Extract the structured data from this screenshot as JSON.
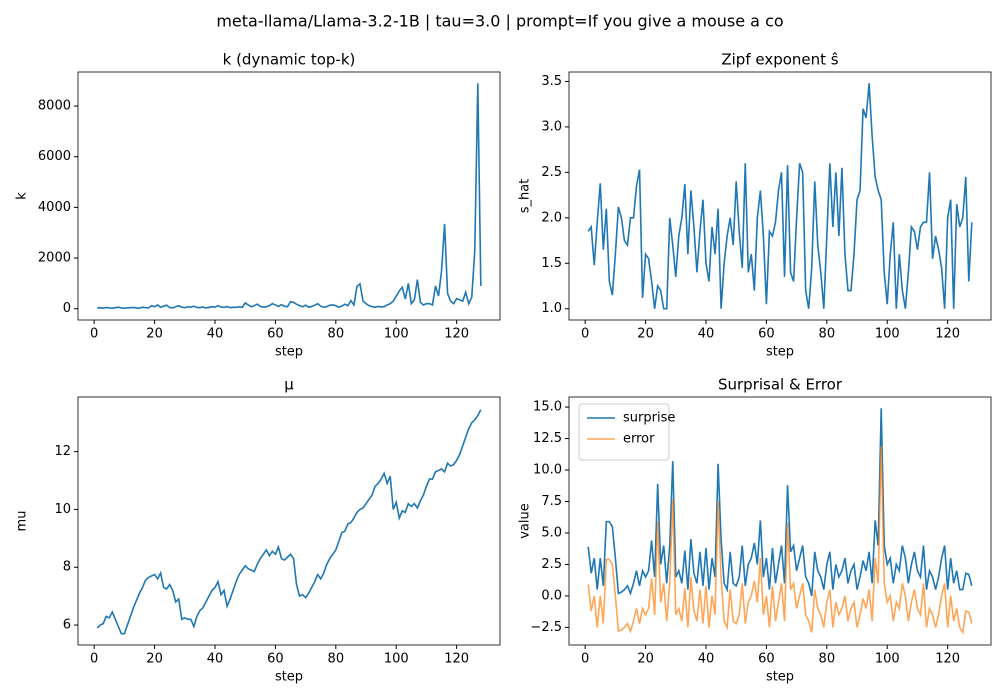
{
  "title": "meta-llama/Llama-3.2-1B | tau=3.0 | prompt=If you give a mouse a co",
  "chart_data": [
    {
      "type": "line",
      "title": "k (dynamic top-k)",
      "xlabel": "step",
      "ylabel": "k",
      "color": "#1f77b4",
      "x": [
        1,
        2,
        3,
        4,
        5,
        6,
        7,
        8,
        9,
        10,
        11,
        12,
        13,
        14,
        15,
        16,
        17,
        18,
        19,
        20,
        21,
        22,
        23,
        24,
        25,
        26,
        27,
        28,
        29,
        30,
        31,
        32,
        33,
        34,
        35,
        36,
        37,
        38,
        39,
        40,
        41,
        42,
        43,
        44,
        45,
        46,
        47,
        48,
        49,
        50,
        51,
        52,
        53,
        54,
        55,
        56,
        57,
        58,
        59,
        60,
        61,
        62,
        63,
        64,
        65,
        66,
        67,
        68,
        69,
        70,
        71,
        72,
        73,
        74,
        75,
        76,
        77,
        78,
        79,
        80,
        81,
        82,
        83,
        84,
        85,
        86,
        87,
        88,
        89,
        90,
        91,
        92,
        93,
        94,
        95,
        96,
        97,
        98,
        99,
        100,
        101,
        102,
        103,
        104,
        105,
        106,
        107,
        108,
        109,
        110,
        111,
        112,
        113,
        114,
        115,
        116,
        117,
        118,
        119,
        120,
        121,
        122,
        123,
        124,
        125,
        126,
        127,
        128
      ],
      "values": [
        30,
        40,
        20,
        50,
        30,
        20,
        40,
        60,
        30,
        20,
        30,
        40,
        50,
        30,
        20,
        60,
        40,
        30,
        120,
        80,
        150,
        60,
        100,
        140,
        50,
        30,
        80,
        120,
        60,
        40,
        80,
        60,
        100,
        50,
        40,
        70,
        30,
        50,
        80,
        60,
        120,
        70,
        50,
        90,
        40,
        60,
        50,
        80,
        50,
        230,
        150,
        80,
        120,
        180,
        90,
        60,
        80,
        120,
        200,
        150,
        90,
        160,
        100,
        80,
        280,
        250,
        180,
        120,
        80,
        140,
        60,
        90,
        140,
        200,
        100,
        60,
        80,
        140,
        150,
        120,
        60,
        100,
        180,
        120,
        320,
        150,
        880,
        980,
        300,
        200,
        120,
        80,
        60,
        90,
        70,
        80,
        150,
        200,
        300,
        500,
        700,
        850,
        380,
        1000,
        200,
        350,
        1150,
        250,
        150,
        200,
        200,
        150,
        900,
        500,
        1500,
        3350,
        600,
        300,
        200,
        400,
        350,
        300,
        650,
        200,
        450,
        2300,
        8900,
        900
      ],
      "xlim": [
        -5.35,
        134.35
      ],
      "xticks": [
        0,
        20,
        40,
        60,
        80,
        100,
        120
      ],
      "ylim": [
        -445,
        9345
      ],
      "yticks": [
        0,
        2000,
        4000,
        6000,
        8000
      ]
    },
    {
      "type": "line",
      "title": "Zipf exponent ŝ",
      "xlabel": "step",
      "ylabel": "s_hat",
      "color": "#1f77b4",
      "x": [
        1,
        2,
        3,
        4,
        5,
        6,
        7,
        8,
        9,
        10,
        11,
        12,
        13,
        14,
        15,
        16,
        17,
        18,
        19,
        20,
        21,
        22,
        23,
        24,
        25,
        26,
        27,
        28,
        29,
        30,
        31,
        32,
        33,
        34,
        35,
        36,
        37,
        38,
        39,
        40,
        41,
        42,
        43,
        44,
        45,
        46,
        47,
        48,
        49,
        50,
        51,
        52,
        53,
        54,
        55,
        56,
        57,
        58,
        59,
        60,
        61,
        62,
        63,
        64,
        65,
        66,
        67,
        68,
        69,
        70,
        71,
        72,
        73,
        74,
        75,
        76,
        77,
        78,
        79,
        80,
        81,
        82,
        83,
        84,
        85,
        86,
        87,
        88,
        89,
        90,
        91,
        92,
        93,
        94,
        95,
        96,
        97,
        98,
        99,
        100,
        101,
        102,
        103,
        104,
        105,
        106,
        107,
        108,
        109,
        110,
        111,
        112,
        113,
        114,
        115,
        116,
        117,
        118,
        119,
        120,
        121,
        122,
        123,
        124,
        125,
        126,
        127,
        128
      ],
      "values": [
        1.85,
        1.9,
        1.48,
        1.95,
        2.38,
        1.65,
        2.1,
        1.3,
        1.15,
        1.6,
        2.12,
        2.0,
        1.75,
        1.7,
        2.0,
        2.0,
        2.35,
        2.53,
        1.12,
        1.6,
        1.55,
        1.3,
        1.0,
        1.25,
        1.2,
        1.0,
        1.0,
        2.0,
        1.7,
        1.35,
        1.8,
        2.0,
        2.37,
        1.6,
        2.3,
        1.9,
        1.4,
        1.85,
        2.2,
        1.5,
        1.3,
        1.9,
        1.6,
        2.1,
        1.0,
        1.5,
        1.8,
        2.0,
        1.7,
        2.4,
        1.85,
        1.45,
        2.6,
        1.4,
        1.6,
        1.2,
        2.0,
        2.3,
        1.8,
        1.05,
        1.85,
        1.8,
        1.95,
        2.3,
        2.5,
        1.35,
        2.58,
        1.4,
        1.3,
        2.0,
        2.6,
        2.5,
        1.2,
        1.0,
        1.45,
        2.4,
        1.7,
        1.4,
        1.0,
        1.8,
        2.6,
        1.9,
        2.5,
        1.8,
        2.55,
        1.6,
        1.2,
        1.2,
        1.6,
        2.2,
        2.3,
        3.2,
        3.1,
        3.48,
        2.9,
        2.45,
        2.3,
        2.2,
        1.4,
        1.05,
        1.6,
        1.95,
        1.0,
        1.6,
        1.2,
        1.0,
        1.4,
        1.9,
        1.85,
        1.65,
        1.9,
        1.95,
        1.95,
        2.5,
        1.55,
        1.8,
        1.65,
        1.45,
        1.0,
        2.0,
        2.2,
        1.0,
        2.15,
        1.9,
        2.0,
        2.45,
        1.3,
        1.95
      ],
      "xlim": [
        -5.35,
        134.35
      ],
      "xticks": [
        0,
        20,
        40,
        60,
        80,
        100,
        120
      ],
      "ylim": [
        0.876,
        3.604
      ],
      "yticks": [
        {
          "value": 1,
          "label": "1.0"
        },
        {
          "value": 1.5,
          "label": "1.5"
        },
        {
          "value": 2,
          "label": "2.0"
        },
        {
          "value": 2.5,
          "label": "2.5"
        },
        {
          "value": 3,
          "label": "3.0"
        },
        {
          "value": 3.5,
          "label": "3.5"
        }
      ]
    },
    {
      "type": "line",
      "title": "μ",
      "xlabel": "step",
      "ylabel": "mu",
      "color": "#1f77b4",
      "x": [
        1,
        2,
        3,
        4,
        5,
        6,
        7,
        8,
        9,
        10,
        11,
        12,
        13,
        14,
        15,
        16,
        17,
        18,
        19,
        20,
        21,
        22,
        23,
        24,
        25,
        26,
        27,
        28,
        29,
        30,
        31,
        32,
        33,
        34,
        35,
        36,
        37,
        38,
        39,
        40,
        41,
        42,
        43,
        44,
        45,
        46,
        47,
        48,
        49,
        50,
        51,
        52,
        53,
        54,
        55,
        56,
        57,
        58,
        59,
        60,
        61,
        62,
        63,
        64,
        65,
        66,
        67,
        68,
        69,
        70,
        71,
        72,
        73,
        74,
        75,
        76,
        77,
        78,
        79,
        80,
        81,
        82,
        83,
        84,
        85,
        86,
        87,
        88,
        89,
        90,
        91,
        92,
        93,
        94,
        95,
        96,
        97,
        98,
        99,
        100,
        101,
        102,
        103,
        104,
        105,
        106,
        107,
        108,
        109,
        110,
        111,
        112,
        113,
        114,
        115,
        116,
        117,
        118,
        119,
        120,
        121,
        122,
        123,
        124,
        125,
        126,
        127,
        128
      ],
      "values": [
        5.9,
        6.0,
        6.05,
        6.3,
        6.25,
        6.45,
        6.2,
        5.95,
        5.7,
        5.7,
        6.0,
        6.3,
        6.6,
        6.85,
        7.1,
        7.3,
        7.55,
        7.65,
        7.7,
        7.75,
        7.6,
        7.8,
        7.3,
        7.25,
        7.4,
        7.2,
        6.8,
        6.9,
        6.2,
        6.25,
        6.2,
        6.2,
        5.95,
        6.3,
        6.5,
        6.6,
        6.8,
        7.0,
        7.2,
        7.3,
        7.5,
        7.05,
        7.2,
        6.65,
        6.9,
        7.2,
        7.5,
        7.75,
        7.9,
        8.05,
        7.95,
        7.9,
        7.85,
        8.1,
        8.3,
        8.45,
        8.6,
        8.4,
        8.55,
        8.45,
        8.7,
        8.3,
        8.25,
        8.35,
        8.45,
        8.3,
        7.4,
        7.0,
        7.05,
        6.95,
        7.1,
        7.3,
        7.5,
        7.75,
        7.6,
        7.8,
        8.1,
        8.3,
        8.45,
        8.6,
        8.9,
        9.2,
        9.25,
        9.5,
        9.55,
        9.7,
        9.9,
        10.0,
        10.05,
        10.2,
        10.35,
        10.5,
        10.8,
        10.9,
        11.05,
        11.25,
        10.9,
        11.15,
        10.0,
        10.25,
        9.7,
        9.95,
        9.9,
        10.2,
        10.1,
        10.2,
        10.05,
        10.3,
        10.5,
        10.8,
        11.05,
        11.05,
        11.3,
        11.35,
        11.4,
        11.3,
        11.6,
        11.5,
        11.55,
        11.7,
        11.9,
        12.2,
        12.5,
        12.8,
        13.0,
        13.1,
        13.25,
        13.45
      ],
      "xlim": [
        -5.35,
        134.35
      ],
      "xticks": [
        0,
        20,
        40,
        60,
        80,
        100,
        120
      ],
      "ylim": [
        5.31,
        13.89
      ],
      "yticks": [
        6,
        8,
        10,
        12
      ]
    },
    {
      "type": "line",
      "title": "Surprisal & Error",
      "xlabel": "step",
      "ylabel": "value",
      "legend": "upper left",
      "x": [
        1,
        2,
        3,
        4,
        5,
        6,
        7,
        8,
        9,
        10,
        11,
        12,
        13,
        14,
        15,
        16,
        17,
        18,
        19,
        20,
        21,
        22,
        23,
        24,
        25,
        26,
        27,
        28,
        29,
        30,
        31,
        32,
        33,
        34,
        35,
        36,
        37,
        38,
        39,
        40,
        41,
        42,
        43,
        44,
        45,
        46,
        47,
        48,
        49,
        50,
        51,
        52,
        53,
        54,
        55,
        56,
        57,
        58,
        59,
        60,
        61,
        62,
        63,
        64,
        65,
        66,
        67,
        68,
        69,
        70,
        71,
        72,
        73,
        74,
        75,
        76,
        77,
        78,
        79,
        80,
        81,
        82,
        83,
        84,
        85,
        86,
        87,
        88,
        89,
        90,
        91,
        92,
        93,
        94,
        95,
        96,
        97,
        98,
        99,
        100,
        101,
        102,
        103,
        104,
        105,
        106,
        107,
        108,
        109,
        110,
        111,
        112,
        113,
        114,
        115,
        116,
        117,
        118,
        119,
        120,
        121,
        122,
        123,
        124,
        125,
        126,
        127,
        128
      ],
      "series": [
        {
          "name": "surprise",
          "color": "#1f77b4",
          "values": [
            3.9,
            1.8,
            3.0,
            0.5,
            3.0,
            0.8,
            5.9,
            5.9,
            5.5,
            3.0,
            0.2,
            0.3,
            0.5,
            0.8,
            0.2,
            1.0,
            2.0,
            0.8,
            2.0,
            1.5,
            2.0,
            4.4,
            1.5,
            8.9,
            2.5,
            4.0,
            1.0,
            4.0,
            10.7,
            1.5,
            2.0,
            1.0,
            3.6,
            0.5,
            4.5,
            1.8,
            1.0,
            3.5,
            0.8,
            3.8,
            0.5,
            3.0,
            1.5,
            10.5,
            4.5,
            1.0,
            0.5,
            3.5,
            1.0,
            0.8,
            1.5,
            4.0,
            0.8,
            2.5,
            3.0,
            4.2,
            2.5,
            6.0,
            1.5,
            3.0,
            0.5,
            3.8,
            1.0,
            2.5,
            4.0,
            1.0,
            8.8,
            3.5,
            4.0,
            2.0,
            3.0,
            4.0,
            1.5,
            1.0,
            0.0,
            3.5,
            2.0,
            1.5,
            0.5,
            2.5,
            3.5,
            0.5,
            2.5,
            1.5,
            2.0,
            3.0,
            1.0,
            2.0,
            2.5,
            0.5,
            1.5,
            2.8,
            2.0,
            3.5,
            1.0,
            6.0,
            4.0,
            14.9,
            4.0,
            2.5,
            3.0,
            1.0,
            2.5,
            2.0,
            4.0,
            3.0,
            1.0,
            2.5,
            3.5,
            2.0,
            1.5,
            4.0,
            0.5,
            2.0,
            1.5,
            0.5,
            1.5,
            3.0,
            4.0,
            0.5,
            3.0,
            1.0,
            2.0,
            0.5,
            0.5,
            1.8,
            1.7,
            0.8
          ]
        },
        {
          "name": "error",
          "color": "#ff7f0e",
          "values": [
            0.9,
            -1.2,
            0.0,
            -2.5,
            0.0,
            -2.2,
            2.9,
            2.9,
            2.5,
            0.0,
            -2.8,
            -2.7,
            -2.5,
            -2.2,
            -2.8,
            -2.0,
            -1.0,
            -2.2,
            -1.0,
            -1.5,
            -1.0,
            1.4,
            -1.5,
            5.9,
            -0.5,
            1.0,
            -2.0,
            1.0,
            7.7,
            -1.5,
            -1.0,
            -2.0,
            0.6,
            -2.5,
            1.5,
            -1.2,
            -2.0,
            0.5,
            -2.2,
            0.8,
            -2.5,
            0.0,
            -1.5,
            7.5,
            1.5,
            -2.0,
            -2.5,
            0.5,
            -2.0,
            -2.2,
            -1.5,
            1.0,
            -2.2,
            -0.5,
            0.0,
            1.2,
            -0.5,
            3.0,
            -1.5,
            0.0,
            -2.5,
            0.8,
            -2.0,
            -0.5,
            1.0,
            -2.0,
            5.8,
            0.5,
            1.0,
            -1.0,
            0.0,
            1.0,
            -1.5,
            -2.0,
            -2.9,
            0.5,
            -1.0,
            -1.5,
            -2.5,
            -0.5,
            0.5,
            -2.5,
            -0.5,
            -1.5,
            -1.0,
            0.0,
            -2.0,
            -1.0,
            -0.5,
            -2.5,
            -1.5,
            -0.2,
            -1.0,
            0.5,
            -2.0,
            3.0,
            1.0,
            11.9,
            1.0,
            -0.5,
            0.0,
            -2.0,
            -0.5,
            -1.0,
            1.0,
            0.0,
            -2.0,
            -0.5,
            0.5,
            -1.0,
            -1.5,
            1.0,
            -2.5,
            -1.0,
            -1.5,
            -2.5,
            -1.5,
            0.0,
            1.0,
            -2.5,
            0.0,
            -2.0,
            -1.0,
            -2.5,
            -2.9,
            -1.2,
            -1.3,
            -2.2
          ]
        }
      ],
      "xlim": [
        -5.35,
        134.35
      ],
      "xticks": [
        0,
        20,
        40,
        60,
        80,
        100,
        120
      ],
      "ylim": [
        -3.9,
        15.8
      ],
      "yticks": [
        {
          "value": -2.5,
          "label": "−2.5"
        },
        {
          "value": 0,
          "label": "0.0"
        },
        {
          "value": 2.5,
          "label": "2.5"
        },
        {
          "value": 5,
          "label": "5.0"
        },
        {
          "value": 7.5,
          "label": "7.5"
        },
        {
          "value": 10,
          "label": "10.0"
        },
        {
          "value": 12.5,
          "label": "12.5"
        },
        {
          "value": 15,
          "label": "15.0"
        }
      ]
    }
  ]
}
